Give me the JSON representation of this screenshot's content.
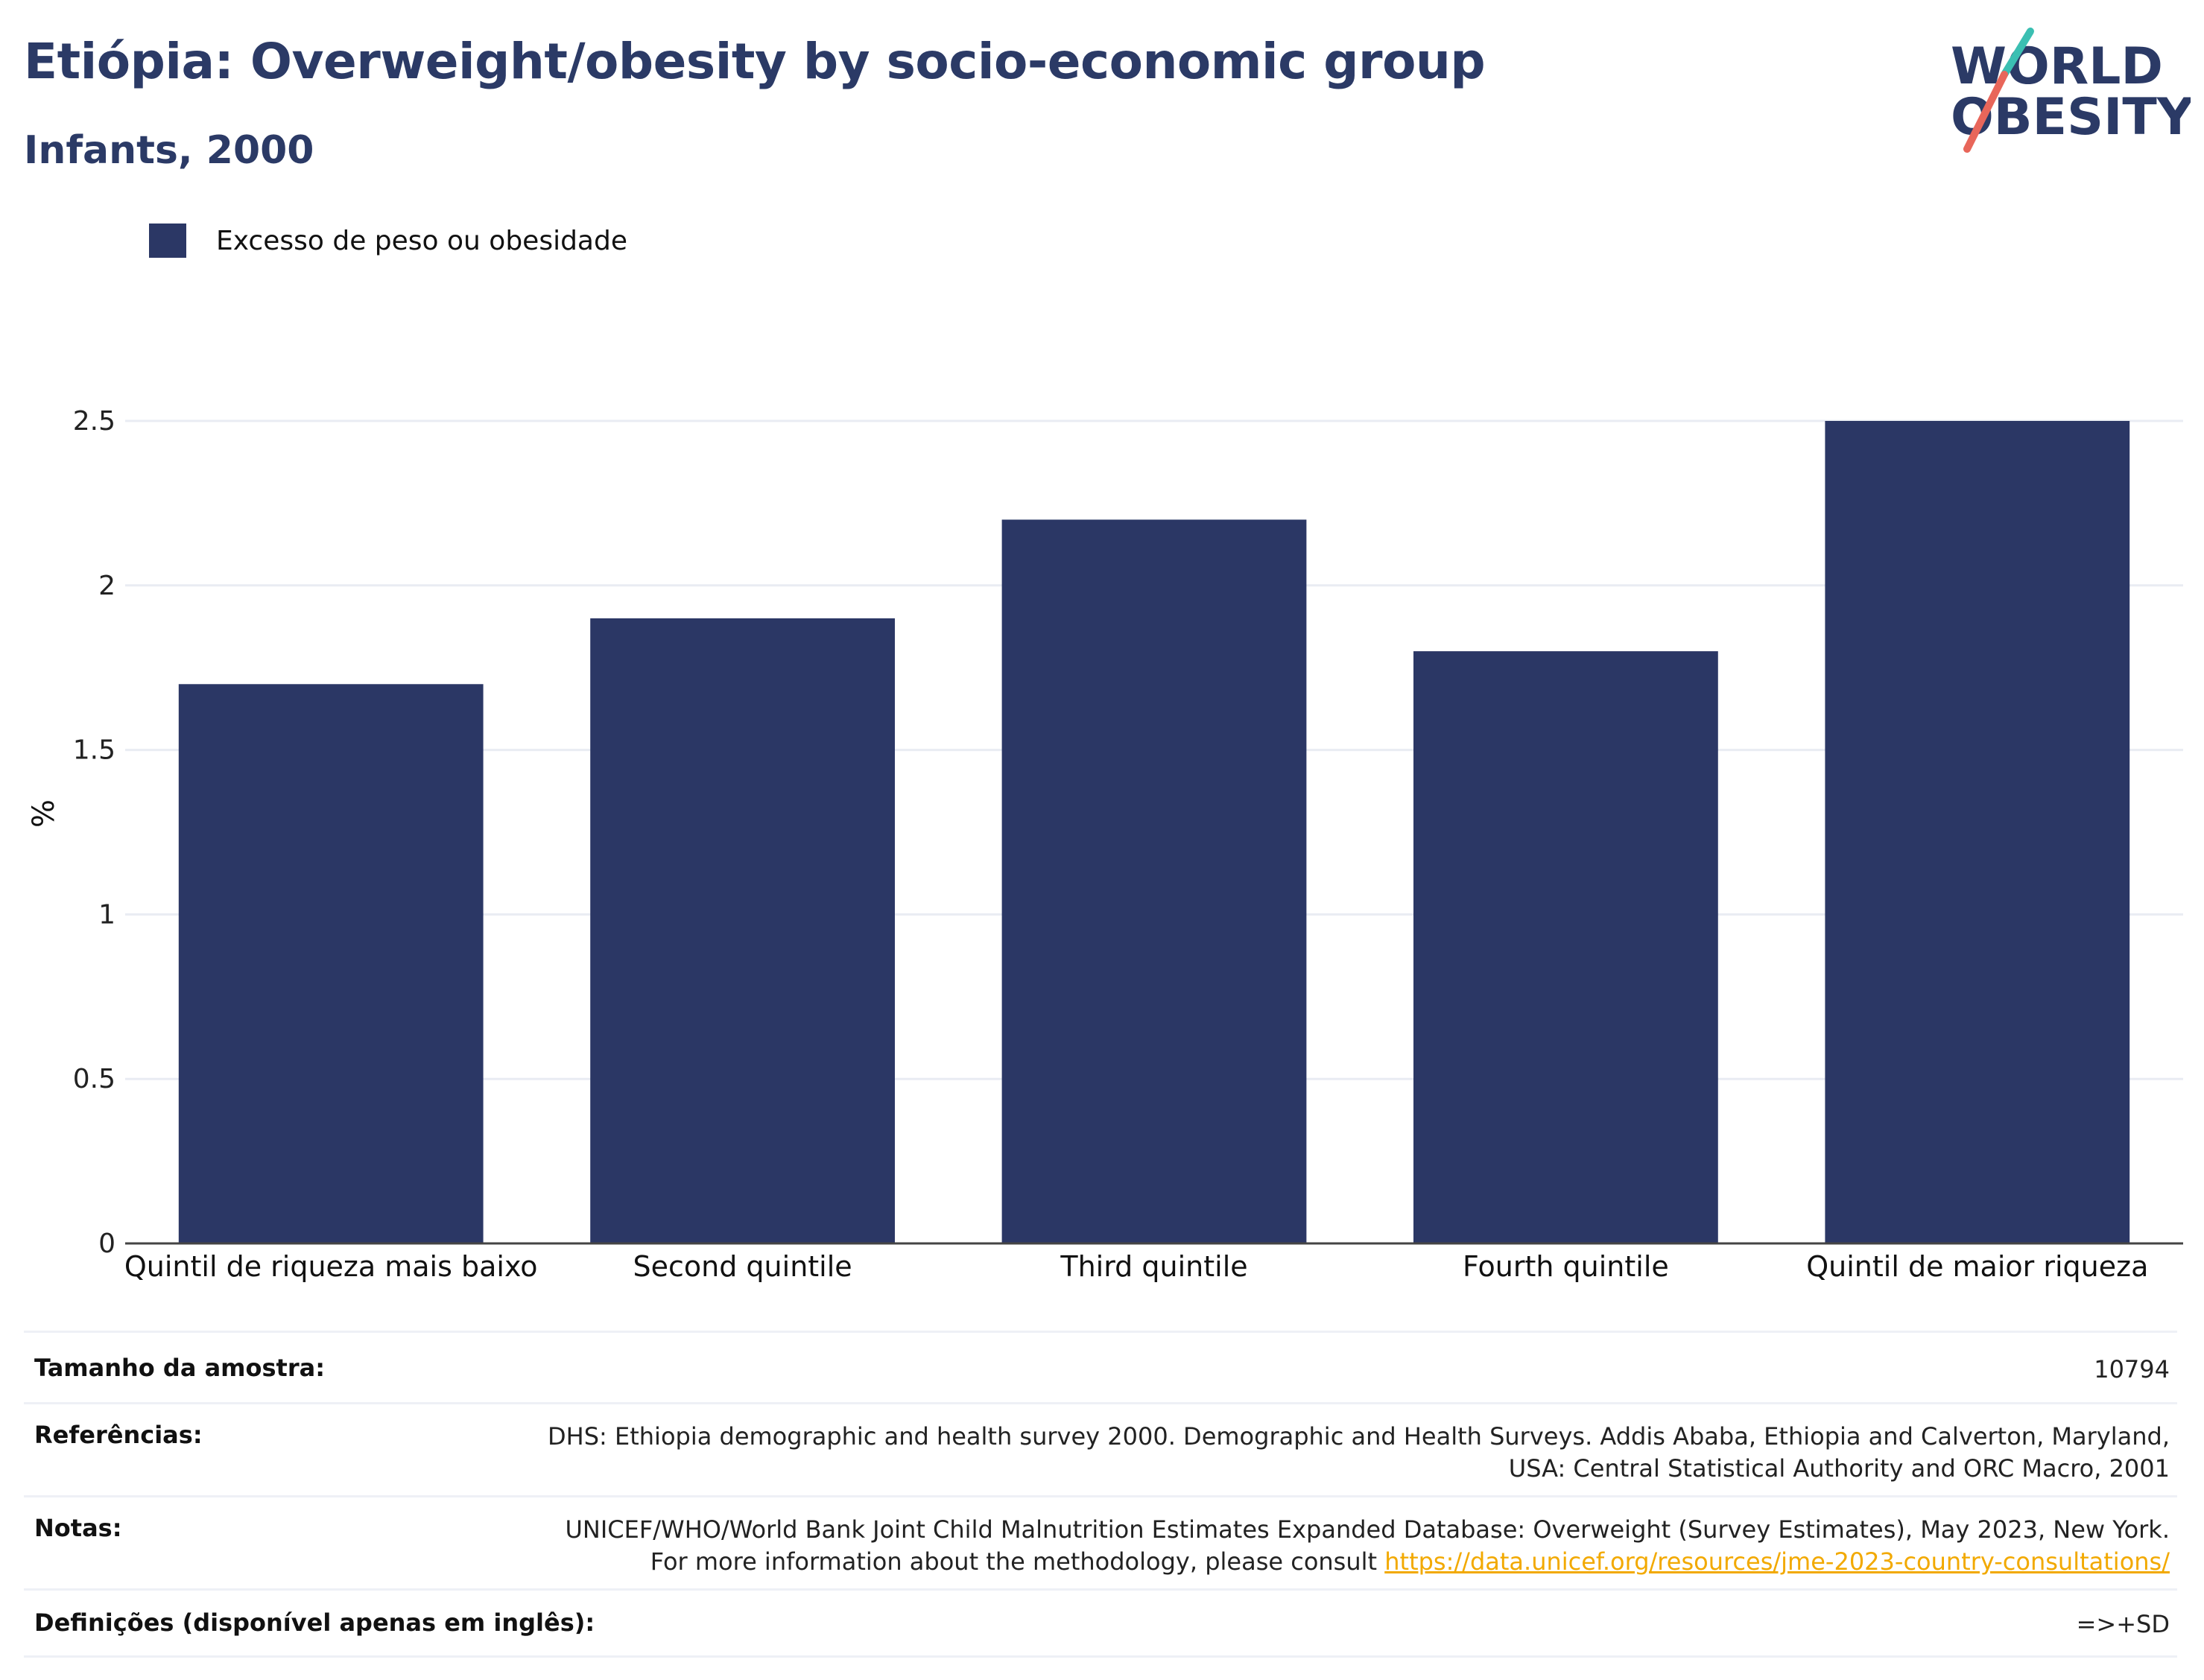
{
  "header": {
    "title": "Etiópia: Overweight/obesity by socio-economic group",
    "subtitle": "Infants, 2000"
  },
  "logo": {
    "line1": "WORLD",
    "line2": "OBESITY",
    "colors": {
      "text": "#2b3a66",
      "slash_teal": "#3bbfb2",
      "slash_red": "#e8665a"
    }
  },
  "legend": {
    "label": "Excesso de peso ou obesidade",
    "color": "#2b3765"
  },
  "chart_data": {
    "type": "bar",
    "categories": [
      "Quintil de riqueza mais baixo",
      "Second quintile",
      "Third quintile",
      "Fourth quintile",
      "Quintil de maior riqueza"
    ],
    "series": [
      {
        "name": "Excesso de peso ou obesidade",
        "values": [
          1.7,
          1.9,
          2.2,
          1.8,
          2.5
        ],
        "color": "#2b3765"
      }
    ],
    "ylabel": "%",
    "ylim": [
      0,
      2.5
    ],
    "yticks": [
      0,
      0.5,
      1,
      1.5,
      2,
      2.5
    ],
    "ytick_labels": [
      "0",
      "0.5",
      "1",
      "1.5",
      "2",
      "2.5"
    ],
    "grid": true,
    "legend_position": "top-left"
  },
  "meta": {
    "sample_label": "Tamanho da amostra:",
    "sample_value": "10794",
    "refs_label": "Referências:",
    "refs_value": "DHS: Ethiopia demographic and health survey 2000. Demographic and Health Surveys. Addis Ababa, Ethiopia and Calverton, Maryland, USA: Central Statistical Authority and ORC Macro, 2001",
    "notes_label": "Notas:",
    "notes_value": "UNICEF/WHO/World Bank Joint Child Malnutrition Estimates Expanded Database: Overweight (Survey Estimates), May 2023, New York. For more information about the methodology, please consult",
    "notes_link": "https://data.unicef.org/resources/jme-2023-country-consultations/",
    "defs_label": "Definições (disponível apenas em inglês):",
    "defs_value": "=>+SD"
  }
}
